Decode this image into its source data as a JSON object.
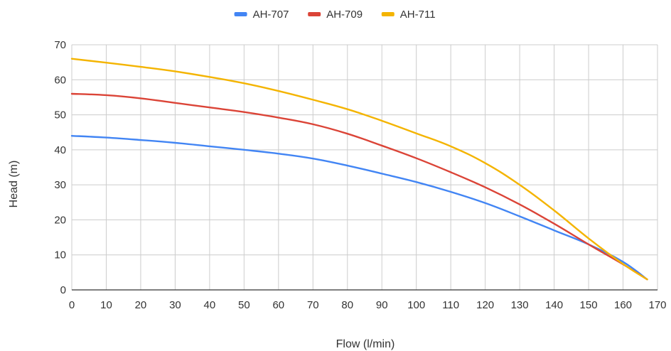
{
  "chart_data": {
    "type": "line",
    "title": "",
    "xlabel": "Flow (l/min)",
    "ylabel": "Head (m)",
    "xlim": [
      0,
      170
    ],
    "ylim": [
      0,
      70
    ],
    "xticks": [
      0,
      10,
      20,
      30,
      40,
      50,
      60,
      70,
      80,
      90,
      100,
      110,
      120,
      130,
      140,
      150,
      160,
      170
    ],
    "yticks": [
      0,
      10,
      20,
      30,
      40,
      50,
      60,
      70
    ],
    "grid": true,
    "legend_position": "top",
    "series": [
      {
        "name": "AH-707",
        "color": "#4285F4",
        "x": [
          0,
          10,
          20,
          30,
          40,
          50,
          60,
          70,
          80,
          90,
          100,
          110,
          120,
          130,
          140,
          150,
          160,
          167
        ],
        "y": [
          44,
          43.5,
          42.8,
          42,
          41,
          40,
          38.9,
          37.5,
          35.5,
          33.2,
          30.8,
          28,
          24.8,
          21,
          17,
          13,
          8,
          3
        ]
      },
      {
        "name": "AH-709",
        "color": "#DB4437",
        "x": [
          0,
          10,
          20,
          30,
          40,
          50,
          60,
          70,
          80,
          90,
          100,
          110,
          120,
          130,
          140,
          150,
          160,
          167
        ],
        "y": [
          56,
          55.6,
          54.7,
          53.4,
          52.1,
          50.8,
          49.2,
          47.3,
          44.6,
          41.2,
          37.6,
          33.6,
          29.3,
          24.4,
          18.9,
          13,
          7.3,
          3
        ]
      },
      {
        "name": "AH-711",
        "color": "#F4B400",
        "x": [
          0,
          10,
          20,
          30,
          40,
          50,
          60,
          70,
          80,
          90,
          100,
          110,
          120,
          130,
          140,
          150,
          160,
          167
        ],
        "y": [
          66,
          64.9,
          63.7,
          62.4,
          60.8,
          59,
          56.8,
          54.3,
          51.6,
          48.3,
          44.7,
          41,
          36.2,
          30,
          22.7,
          14.7,
          7.4,
          3
        ]
      }
    ]
  }
}
